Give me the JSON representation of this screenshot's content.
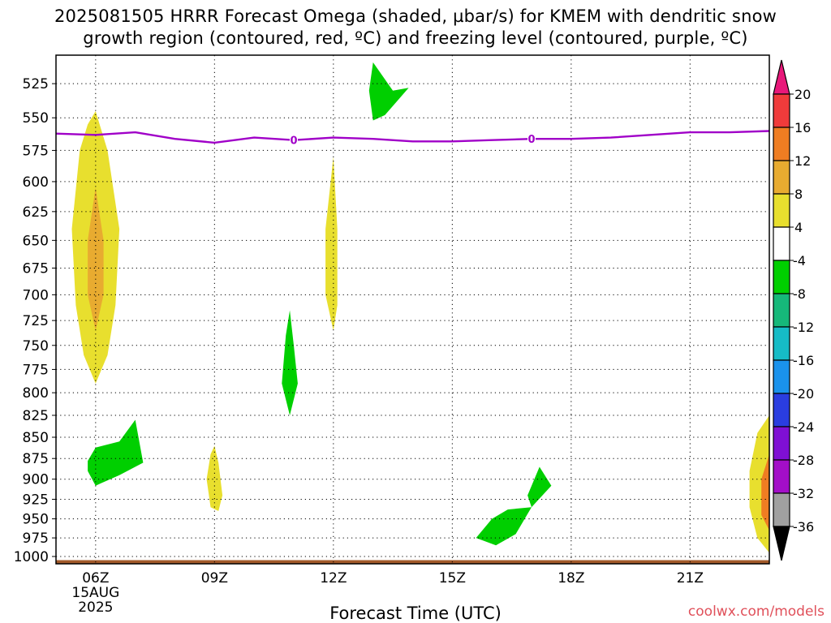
{
  "title_line1": "2025081505 HRRR Forecast Omega (shaded, µbar/s) for KMEM with dendritic snow",
  "title_line2": "growth region (contoured, red, ºC) and freezing level (contoured, purple, ºC)",
  "watermark": "coolwx.com/models",
  "chart_data": {
    "type": "heatmap",
    "xlabel": "Forecast Time (UTC)",
    "ylabel": "",
    "x_ticks": [
      {
        "hour": 6,
        "label": "06Z",
        "sub": [
          "15AUG",
          "2025"
        ]
      },
      {
        "hour": 9,
        "label": "09Z"
      },
      {
        "hour": 12,
        "label": "12Z"
      },
      {
        "hour": 15,
        "label": "15Z"
      },
      {
        "hour": 18,
        "label": "18Z"
      },
      {
        "hour": 21,
        "label": "21Z"
      }
    ],
    "xlim": [
      5.0,
      23.0
    ],
    "y_ticks": [
      525,
      550,
      575,
      600,
      625,
      650,
      675,
      700,
      725,
      750,
      775,
      800,
      825,
      850,
      875,
      900,
      925,
      950,
      975,
      1000
    ],
    "ylim_hPa": [
      1010,
      505
    ],
    "grid": true,
    "colorbar": {
      "labels": [
        20,
        16,
        12,
        8,
        4,
        -4,
        -8,
        -12,
        -16,
        -20,
        -24,
        -28,
        -32,
        -36
      ],
      "colors": [
        "#e8187a",
        "#f03b3b",
        "#ef7d22",
        "#e8ab30",
        "#e8df2e",
        "#ffffff",
        "#00cf00",
        "#16b87a",
        "#16bcc6",
        "#1a92ec",
        "#2a3de0",
        "#7f0fd4",
        "#a30ec8",
        "#a0a0a0",
        "#000000"
      ]
    },
    "freezing_level": {
      "label": "0",
      "color": "#a000c8",
      "points": [
        [
          5.0,
          562
        ],
        [
          6.0,
          563
        ],
        [
          7.0,
          561
        ],
        [
          8.0,
          566
        ],
        [
          9.0,
          569
        ],
        [
          10.0,
          565
        ],
        [
          11.0,
          567
        ],
        [
          12.0,
          565
        ],
        [
          13.0,
          566
        ],
        [
          14.0,
          568
        ],
        [
          15.0,
          568
        ],
        [
          16.0,
          567
        ],
        [
          17.0,
          566
        ],
        [
          18.0,
          566
        ],
        [
          19.0,
          565
        ],
        [
          20.0,
          563
        ],
        [
          21.0,
          561
        ],
        [
          22.0,
          561
        ],
        [
          23.0,
          560
        ]
      ],
      "label_hours": [
        11.0,
        17.0
      ]
    },
    "ground": {
      "color": "#a25a2a",
      "top_hPa": 1005
    },
    "omega_regions": [
      {
        "value_range": "4 to 8",
        "color": "#e8df2e",
        "points": [
          [
            6.0,
            545
          ],
          [
            6.3,
            575
          ],
          [
            6.6,
            640
          ],
          [
            6.5,
            710
          ],
          [
            6.3,
            760
          ],
          [
            6.0,
            790
          ],
          [
            5.7,
            760
          ],
          [
            5.5,
            710
          ],
          [
            5.4,
            640
          ],
          [
            5.6,
            575
          ],
          [
            5.8,
            555
          ]
        ]
      },
      {
        "value_range": "8 to 12",
        "color": "#e8ab30",
        "points": [
          [
            6.0,
            605
          ],
          [
            6.2,
            650
          ],
          [
            6.2,
            700
          ],
          [
            6.0,
            735
          ],
          [
            5.8,
            700
          ],
          [
            5.8,
            650
          ]
        ]
      },
      {
        "value_range": "-4 to -8",
        "color": "#00cf00",
        "points": [
          [
            5.8,
            878
          ],
          [
            6.0,
            862
          ],
          [
            6.6,
            855
          ],
          [
            7.0,
            830
          ],
          [
            7.2,
            880
          ],
          [
            6.6,
            895
          ],
          [
            6.0,
            908
          ],
          [
            5.8,
            890
          ]
        ]
      },
      {
        "value_range": "4 to 8",
        "color": "#e8df2e",
        "points": [
          [
            9.0,
            860
          ],
          [
            9.1,
            880
          ],
          [
            9.2,
            920
          ],
          [
            9.1,
            940
          ],
          [
            8.9,
            935
          ],
          [
            8.8,
            900
          ],
          [
            8.9,
            870
          ]
        ]
      },
      {
        "value_range": "-4 to -8",
        "color": "#00cf00",
        "points": [
          [
            10.9,
            715
          ],
          [
            11.0,
            750
          ],
          [
            11.1,
            790
          ],
          [
            10.9,
            825
          ],
          [
            10.7,
            790
          ],
          [
            10.8,
            740
          ]
        ]
      },
      {
        "value_range": "4 to 8",
        "color": "#e8df2e",
        "points": [
          [
            12.0,
            580
          ],
          [
            12.1,
            640
          ],
          [
            12.1,
            710
          ],
          [
            12.0,
            735
          ],
          [
            11.8,
            700
          ],
          [
            11.8,
            640
          ]
        ]
      },
      {
        "value_range": "-4 to -8",
        "color": "#00cf00",
        "points": [
          [
            13.0,
            510
          ],
          [
            13.5,
            530
          ],
          [
            13.9,
            528
          ],
          [
            13.3,
            548
          ],
          [
            13.0,
            552
          ],
          [
            12.9,
            530
          ]
        ]
      },
      {
        "value_range": "-4 to -8",
        "color": "#00cf00",
        "points": [
          [
            16.0,
            950
          ],
          [
            16.4,
            938
          ],
          [
            17.0,
            935
          ],
          [
            16.9,
            920
          ],
          [
            17.2,
            885
          ],
          [
            17.5,
            908
          ],
          [
            17.0,
            935
          ],
          [
            16.6,
            970
          ],
          [
            16.1,
            985
          ],
          [
            15.6,
            975
          ]
        ]
      },
      {
        "value_range": "4 to 8",
        "color": "#e8df2e",
        "points": [
          [
            23.0,
            825
          ],
          [
            22.7,
            845
          ],
          [
            22.5,
            890
          ],
          [
            22.5,
            935
          ],
          [
            22.7,
            975
          ],
          [
            23.0,
            995
          ]
        ]
      },
      {
        "value_range": "8 to 12",
        "color": "#ef7d22",
        "points": [
          [
            23.0,
            870
          ],
          [
            22.8,
            900
          ],
          [
            22.8,
            945
          ],
          [
            23.0,
            965
          ]
        ]
      }
    ]
  }
}
